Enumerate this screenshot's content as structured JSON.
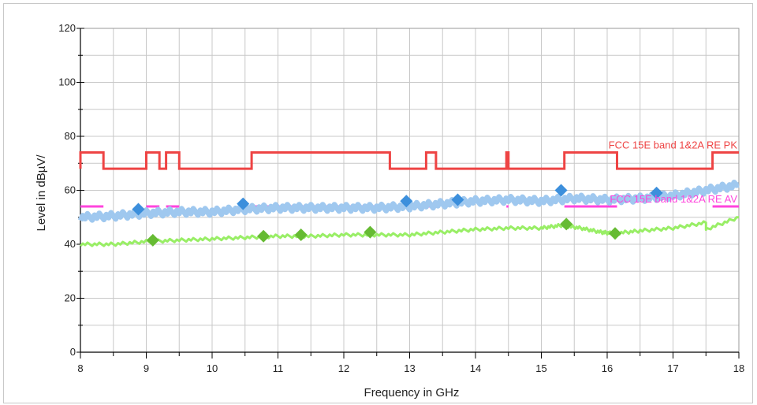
{
  "chart_data": {
    "type": "line",
    "title": "",
    "xlabel": "Frequency in GHz",
    "ylabel": "Level in dBµV/",
    "xlim": [
      8,
      18
    ],
    "ylim": [
      0,
      120
    ],
    "x_ticks": [
      "8",
      "9",
      "10",
      "11",
      "12",
      "13",
      "14",
      "15",
      "16",
      "17",
      "18"
    ],
    "y_ticks": [
      "0",
      "20",
      "40",
      "60",
      "80",
      "100",
      "120"
    ],
    "grid": true,
    "colors": {
      "limit_pk": "#ee4444",
      "limit_av": "#ff44dd",
      "peak_trace": "#9fc8ef",
      "peak_markers": "#3c8fdc",
      "avg_trace": "#99ee66",
      "avg_markers": "#66bb33",
      "grid": "#c8c8c8"
    },
    "series": [
      {
        "name": "FCC 15E band 1&2A RE PK",
        "kind": "limit",
        "points": [
          [
            8.0,
            68
          ],
          [
            8.0,
            74
          ],
          [
            8.35,
            74
          ],
          [
            8.35,
            68
          ],
          [
            9.0,
            68
          ],
          [
            9.0,
            74
          ],
          [
            9.2,
            74
          ],
          [
            9.2,
            68
          ],
          [
            9.3,
            68
          ],
          [
            9.3,
            74
          ],
          [
            9.5,
            74
          ],
          [
            9.5,
            68
          ],
          [
            10.6,
            68
          ],
          [
            10.6,
            74
          ],
          [
            12.7,
            74
          ],
          [
            12.7,
            68
          ],
          [
            13.25,
            68
          ],
          [
            13.25,
            74
          ],
          [
            13.4,
            74
          ],
          [
            13.4,
            68
          ],
          [
            14.47,
            68
          ],
          [
            14.47,
            74
          ],
          [
            14.5,
            74
          ],
          [
            14.5,
            68
          ],
          [
            15.35,
            68
          ],
          [
            15.35,
            74
          ],
          [
            16.15,
            74
          ],
          [
            16.15,
            68
          ],
          [
            17.6,
            68
          ],
          [
            17.6,
            74
          ],
          [
            18.0,
            74
          ]
        ]
      },
      {
        "name": "FCC 15E band 1&2A RE AV",
        "kind": "limit",
        "points": [
          [
            8.0,
            54
          ],
          [
            8.35,
            54
          ],
          [
            null,
            null
          ],
          [
            9.0,
            54
          ],
          [
            9.2,
            54
          ],
          [
            null,
            null
          ],
          [
            9.3,
            54
          ],
          [
            9.5,
            54
          ],
          [
            null,
            null
          ],
          [
            10.6,
            54
          ],
          [
            12.7,
            54
          ],
          [
            null,
            null
          ],
          [
            13.25,
            54
          ],
          [
            13.4,
            54
          ],
          [
            null,
            null
          ],
          [
            14.47,
            54
          ],
          [
            14.5,
            54
          ],
          [
            null,
            null
          ],
          [
            15.35,
            54
          ],
          [
            16.15,
            54
          ],
          [
            null,
            null
          ],
          [
            17.6,
            54
          ],
          [
            18.0,
            54
          ]
        ]
      },
      {
        "kind": "peak-trace",
        "x": [
          8.0,
          8.5,
          9.0,
          9.5,
          10.0,
          10.5,
          11.0,
          11.5,
          12.0,
          12.5,
          13.0,
          13.5,
          14.0,
          14.5,
          15.0,
          15.5,
          16.0,
          16.5,
          17.0,
          17.5,
          18.0
        ],
        "y": [
          50,
          50.5,
          51.5,
          52,
          52,
          53,
          53.5,
          53.5,
          53.5,
          53.5,
          54,
          55,
          56,
          56.5,
          56,
          57,
          56.5,
          57,
          58,
          60,
          62
        ]
      },
      {
        "kind": "average-trace",
        "x": [
          8.0,
          8.5,
          9.0,
          9.5,
          10.0,
          10.5,
          11.0,
          11.5,
          12.0,
          12.5,
          13.0,
          13.5,
          14.0,
          14.5,
          15.0,
          15.3,
          15.6,
          15.9,
          16.1,
          16.5,
          17.0,
          17.5,
          17.5,
          18.0
        ],
        "y": [
          40,
          40,
          41,
          41.5,
          42,
          42.5,
          43,
          43,
          43.5,
          43.5,
          43.5,
          44.5,
          45.5,
          46,
          46,
          47,
          46,
          44.5,
          44,
          45,
          46,
          48,
          45.5,
          50
        ]
      },
      {
        "kind": "peak-markers",
        "x": [
          8.88,
          10.47,
          12.95,
          13.73,
          15.3,
          16.75
        ],
        "y": [
          53,
          55,
          56,
          56.5,
          60,
          59
        ]
      },
      {
        "kind": "average-markers",
        "x": [
          9.1,
          10.78,
          11.35,
          12.4,
          15.38,
          16.12
        ],
        "y": [
          41.5,
          43,
          43.5,
          44.5,
          47.5,
          44
        ]
      }
    ]
  }
}
